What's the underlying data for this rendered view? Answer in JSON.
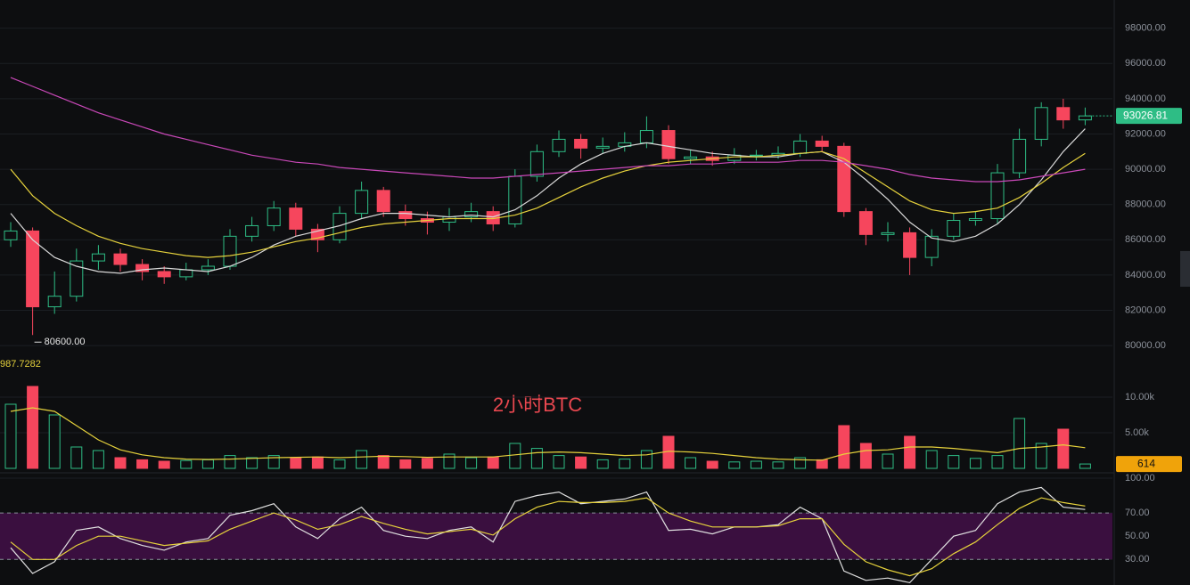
{
  "chart_data": [
    {
      "type": "candlestick",
      "title": "2小时BTC",
      "open": [
        86000,
        86500,
        82200,
        82800,
        84800,
        85200,
        84600,
        84200,
        83900,
        84300,
        84500,
        86200,
        86800,
        87800,
        86600,
        86000,
        87500,
        88800,
        87600,
        87200,
        87000,
        87300,
        87600,
        86900,
        89600,
        91000,
        91700,
        91200,
        91300,
        91500,
        92200,
        90600,
        90700,
        90500,
        90800,
        90800,
        90900,
        91600,
        91300,
        87600,
        86300,
        86400,
        85000,
        86200,
        87100,
        87200,
        89800,
        91700,
        93500,
        92800
      ],
      "high": [
        87000,
        86700,
        84200,
        85500,
        85700,
        85500,
        84900,
        84500,
        84700,
        84900,
        86600,
        87300,
        88200,
        88100,
        86900,
        87900,
        89300,
        89000,
        88000,
        87600,
        87800,
        88100,
        87900,
        90000,
        91400,
        92200,
        92000,
        91800,
        92100,
        93000,
        92500,
        91100,
        91000,
        91200,
        91100,
        91300,
        92000,
        91900,
        91500,
        87800,
        87000,
        86700,
        86600,
        87500,
        87600,
        90300,
        92300,
        93800,
        94000,
        93500
      ],
      "low": [
        85600,
        80600,
        81800,
        82500,
        84300,
        84200,
        83700,
        83500,
        83700,
        84000,
        84300,
        85900,
        86500,
        86200,
        85300,
        85800,
        87200,
        87300,
        86800,
        86300,
        86500,
        87000,
        86500,
        86700,
        89300,
        90700,
        90600,
        90900,
        91000,
        91200,
        90300,
        90300,
        90200,
        90300,
        90500,
        90600,
        90700,
        91000,
        87300,
        85700,
        85900,
        84000,
        84500,
        86000,
        86800,
        86900,
        89500,
        91300,
        92300,
        92500
      ],
      "close": [
        86500,
        82200,
        82800,
        84800,
        85200,
        84600,
        84200,
        83900,
        84300,
        84500,
        86200,
        86800,
        87800,
        86600,
        86000,
        87500,
        88800,
        87600,
        87200,
        87000,
        87300,
        87600,
        86900,
        89600,
        91000,
        91700,
        91200,
        91300,
        91500,
        92200,
        90600,
        90700,
        90500,
        90800,
        90800,
        90900,
        91600,
        91300,
        87600,
        86300,
        86400,
        85000,
        86200,
        87100,
        87200,
        89800,
        91700,
        93500,
        92800,
        93026.81
      ],
      "series": [
        {
          "color": "#d9d9d9",
          "values": [
            87500,
            86000,
            85000,
            84500,
            84200,
            84100,
            84300,
            84400,
            84300,
            84200,
            84500,
            85000,
            85700,
            86200,
            86500,
            86800,
            87200,
            87500,
            87500,
            87400,
            87300,
            87400,
            87300,
            87700,
            88500,
            89500,
            90300,
            90900,
            91300,
            91500,
            91300,
            91100,
            90900,
            90800,
            90700,
            90700,
            90900,
            91000,
            90400,
            89400,
            88300,
            87000,
            86100,
            85900,
            86200,
            86900,
            88000,
            89400,
            91000,
            92300
          ]
        },
        {
          "color": "#e6d23c",
          "values": [
            90000,
            88500,
            87500,
            86800,
            86200,
            85800,
            85500,
            85300,
            85100,
            85000,
            85100,
            85300,
            85600,
            85900,
            86100,
            86400,
            86700,
            86900,
            87000,
            87100,
            87200,
            87200,
            87200,
            87400,
            87800,
            88400,
            89000,
            89500,
            89900,
            90200,
            90400,
            90500,
            90600,
            90700,
            90700,
            90800,
            90900,
            91000,
            90600,
            89800,
            89000,
            88200,
            87700,
            87500,
            87600,
            87800,
            88400,
            89200,
            90100,
            90900
          ]
        },
        {
          "color": "#c948b8",
          "values": [
            95200,
            94700,
            94200,
            93700,
            93200,
            92800,
            92400,
            92000,
            91700,
            91400,
            91100,
            90800,
            90600,
            90400,
            90300,
            90100,
            90000,
            89900,
            89800,
            89700,
            89600,
            89500,
            89500,
            89600,
            89700,
            89800,
            89900,
            90000,
            90100,
            90200,
            90200,
            90300,
            90300,
            90400,
            90400,
            90400,
            90500,
            90500,
            90400,
            90200,
            90000,
            89700,
            89500,
            89400,
            89300,
            89300,
            89400,
            89600,
            89800,
            90000
          ]
        }
      ],
      "up_color": "#2ebd85",
      "down_color": "#f6465d",
      "annotation": {
        "value": 80600,
        "label": "80600.00"
      },
      "ylim": [
        79400,
        99600
      ],
      "yticks": [
        {
          "value": 80000,
          "label": "80000.00"
        },
        {
          "value": 82000,
          "label": "82000.00"
        },
        {
          "value": 84000,
          "label": "84000.00"
        },
        {
          "value": 86000,
          "label": "86000.00"
        },
        {
          "value": 88000,
          "label": "88000.00"
        },
        {
          "value": 90000,
          "label": "90000.00"
        },
        {
          "value": 92000,
          "label": "92000.00"
        },
        {
          "value": 94000,
          "label": "94000.00"
        },
        {
          "value": 96000,
          "label": "96000.00"
        },
        {
          "value": 98000,
          "label": "98000.00"
        }
      ],
      "grid": true
    },
    {
      "type": "volume",
      "indicator_label": "987.7282",
      "values": [
        9000,
        11500,
        7500,
        3000,
        2500,
        1500,
        1200,
        1000,
        1100,
        1200,
        1800,
        1500,
        1800,
        1500,
        1600,
        1200,
        2500,
        1800,
        1200,
        1400,
        2000,
        1500,
        1600,
        3500,
        2800,
        1800,
        1600,
        1200,
        1300,
        2500,
        4500,
        1500,
        1000,
        900,
        1000,
        900,
        1500,
        1200,
        6000,
        3500,
        2000,
        4500,
        2500,
        1800,
        1400,
        1800,
        7000,
        3500,
        5500,
        614
      ],
      "series": [
        {
          "color": "#e6d23c",
          "values": [
            8000,
            8500,
            8000,
            6000,
            4000,
            2600,
            1900,
            1500,
            1300,
            1250,
            1300,
            1400,
            1500,
            1550,
            1600,
            1500,
            1600,
            1700,
            1650,
            1550,
            1600,
            1600,
            1600,
            1900,
            2200,
            2300,
            2200,
            2000,
            1800,
            1900,
            2400,
            2300,
            2100,
            1800,
            1500,
            1300,
            1200,
            1150,
            2000,
            2500,
            2600,
            3000,
            3000,
            2800,
            2500,
            2200,
            2800,
            3000,
            3300,
            2900
          ]
        }
      ],
      "tag_color": "#f0a30a",
      "ylim": [
        -500,
        15750
      ],
      "yticks": [
        {
          "value": 5000,
          "label": "5.00k"
        },
        {
          "value": 10000,
          "label": "10.00k"
        }
      ],
      "grid": true
    },
    {
      "type": "line",
      "series": [
        {
          "color": "#e0e0e0",
          "values": [
            40,
            18,
            28,
            55,
            58,
            48,
            42,
            38,
            45,
            48,
            68,
            72,
            78,
            58,
            48,
            65,
            75,
            55,
            50,
            48,
            55,
            58,
            45,
            80,
            85,
            88,
            78,
            80,
            82,
            88,
            55,
            56,
            52,
            58,
            58,
            60,
            75,
            65,
            20,
            12,
            14,
            10,
            30,
            50,
            55,
            78,
            88,
            92,
            75,
            73
          ]
        },
        {
          "color": "#e6d23c",
          "values": [
            45,
            30,
            30,
            42,
            50,
            50,
            46,
            42,
            44,
            46,
            56,
            63,
            70,
            64,
            56,
            60,
            67,
            61,
            56,
            52,
            54,
            56,
            51,
            65,
            75,
            80,
            79,
            79,
            80,
            83,
            70,
            63,
            58,
            58,
            58,
            59,
            65,
            65,
            43,
            28,
            21,
            16,
            22,
            35,
            45,
            60,
            74,
            83,
            79,
            76
          ]
        }
      ],
      "band": [
        30,
        70
      ],
      "band_color": "#3a0f3f",
      "ylim": [
        8,
        103.8
      ],
      "yticks": [
        {
          "value": 30,
          "label": "30.00"
        },
        {
          "value": 50,
          "label": "50.00"
        },
        {
          "value": 70,
          "label": "70.00"
        },
        {
          "value": 100,
          "label": "100.00"
        }
      ],
      "grid": true
    }
  ]
}
